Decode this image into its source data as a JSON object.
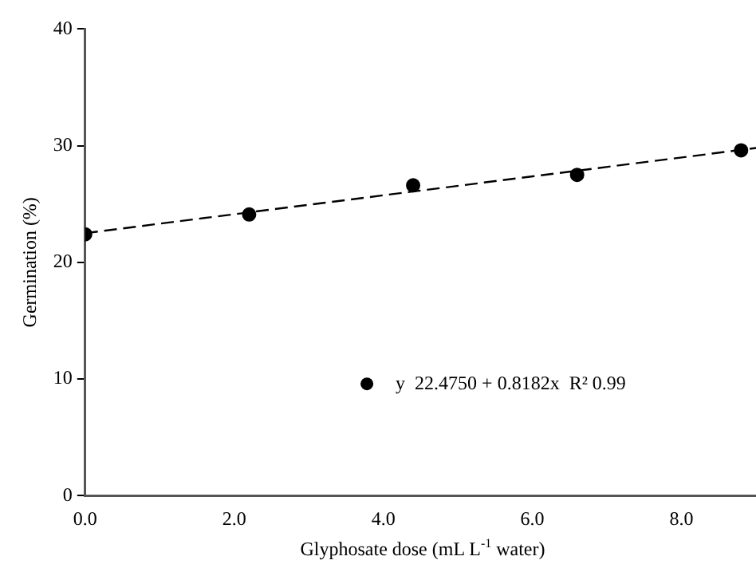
{
  "chart_data": {
    "type": "scatter",
    "xlabel": "Glyphosate dose (mL L$^{-1}$ water)",
    "ylabel": "Germination (%)",
    "series": [
      {
        "name": "y  22.4750 + 0.8182x  R² 0.99",
        "color": "#000000",
        "x": [
          0,
          2.2,
          4.4,
          6.6,
          8.8
        ],
        "values": [
          22.4,
          24.1,
          26.6,
          27.5,
          29.6
        ],
        "marker": "circle"
      },
      {
        "type": "line",
        "color": "#000000",
        "x": [
          0,
          9
        ],
        "values": [
          22.5,
          29.8
        ],
        "line_style": "dashed",
        "marker": "none"
      }
    ],
    "xlim": [
      0,
      9
    ],
    "xticks": [
      {
        "value": 0,
        "label": "0.0"
      },
      {
        "value": 2,
        "label": "2.0"
      },
      {
        "value": 4,
        "label": "4.0"
      },
      {
        "value": 6,
        "label": "6.0"
      },
      {
        "value": 8,
        "label": "8.0"
      }
    ],
    "ylim": [
      0,
      40
    ],
    "yticks": [
      0,
      10,
      20,
      30,
      40
    ],
    "grid": false,
    "legend": "bottom"
  }
}
